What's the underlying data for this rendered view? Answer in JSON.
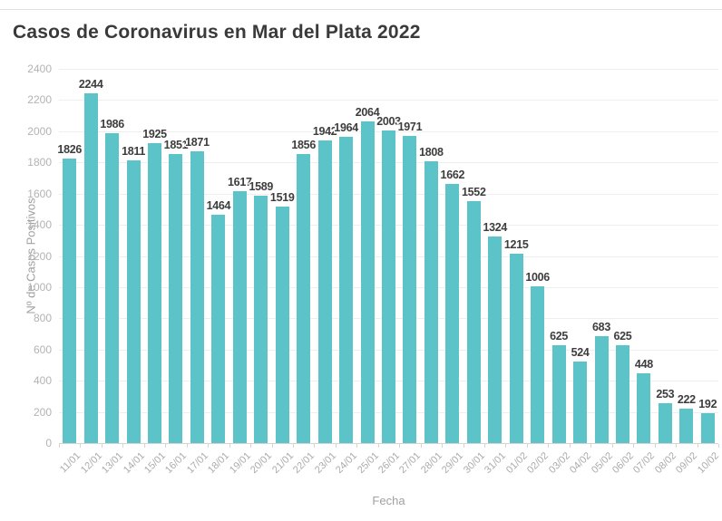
{
  "chart_data": {
    "type": "bar",
    "title": "Casos de Coronavirus en Mar del Plata 2022",
    "xlabel": "Fecha",
    "ylabel": "Nº de Casos Positivos",
    "ylim": [
      0,
      2400
    ],
    "ytick_step": 200,
    "grid": true,
    "legend": "none",
    "bar_color": "#5cc3c9",
    "categories": [
      "11/01",
      "12/01",
      "13/01",
      "14/01",
      "15/01",
      "16/01",
      "17/01",
      "18/01",
      "19/01",
      "20/01",
      "21/01",
      "22/01",
      "23/01",
      "24/01",
      "25/01",
      "26/01",
      "27/01",
      "28/01",
      "29/01",
      "30/01",
      "31/01",
      "01/02",
      "02/02",
      "03/02",
      "04/02",
      "05/02",
      "06/02",
      "07/02",
      "08/02",
      "09/02",
      "10/02"
    ],
    "values": [
      1826,
      2244,
      1986,
      1811,
      1925,
      1851,
      1871,
      1464,
      1617,
      1589,
      1519,
      1856,
      1942,
      1964,
      2064,
      2003,
      1971,
      1808,
      1662,
      1552,
      1324,
      1215,
      1006,
      625,
      524,
      683,
      625,
      448,
      253,
      222,
      192
    ]
  }
}
